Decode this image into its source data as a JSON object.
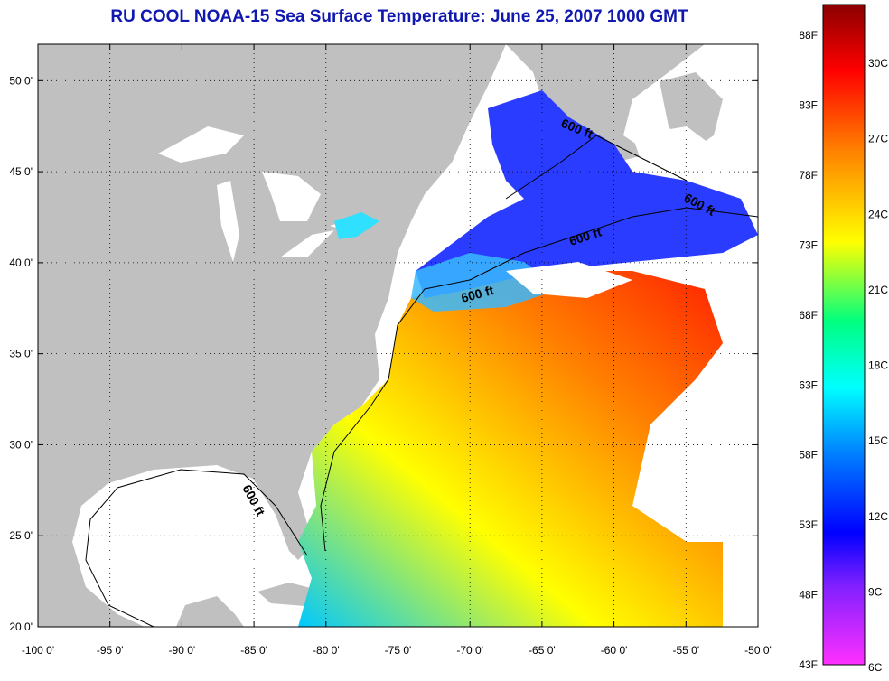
{
  "title": "RU COOL  NOAA-15  Sea Surface Temperature:  June 25, 2007 1000 GMT",
  "map": {
    "lon_range": [
      -100,
      -50
    ],
    "lat_range": [
      20,
      52
    ],
    "lon_ticks": [
      "-100 0'",
      "-95 0'",
      "-90 0'",
      "-85 0'",
      "-80 0'",
      "-75 0'",
      "-70 0'",
      "-65 0'",
      "-60 0'",
      "-55 0'",
      "-50 0'"
    ],
    "lat_ticks": [
      "20 0'",
      "25 0'",
      "30 0'",
      "35 0'",
      "40 0'",
      "45 0'",
      "50 0'"
    ],
    "grid": true,
    "grid_style": "dotted",
    "land_color": "#c0c0c0",
    "no_data_color": "#ffffff",
    "contour_label": "600 ft"
  },
  "colorbar": {
    "fahrenheit_labels": [
      "88F",
      "83F",
      "78F",
      "73F",
      "68F",
      "63F",
      "58F",
      "53F",
      "48F",
      "43F"
    ],
    "celsius_labels": [
      "30C",
      "27C",
      "24C",
      "21C",
      "18C",
      "15C",
      "12C",
      "9C",
      "6C"
    ],
    "colors": [
      "#8b0000",
      "#ff0000",
      "#ff8000",
      "#ffff00",
      "#00ff80",
      "#00ffff",
      "#0000ff",
      "#ff00ff"
    ]
  }
}
